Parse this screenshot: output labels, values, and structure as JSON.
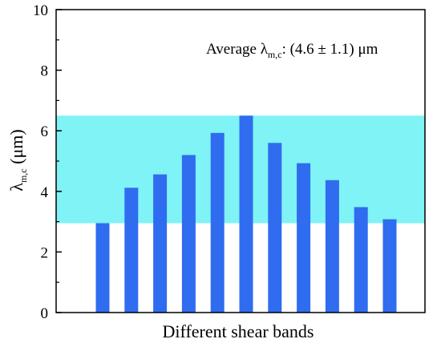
{
  "chart_data": {
    "type": "bar",
    "categories": [
      "",
      "",
      "",
      "",
      "",
      "",
      "",
      "",
      "",
      "",
      ""
    ],
    "values": [
      2.95,
      4.12,
      4.56,
      5.2,
      5.93,
      6.5,
      5.6,
      4.93,
      4.37,
      3.48,
      3.08
    ],
    "xlabel": "Different shear bands",
    "ylabel_main": "λ",
    "ylabel_sub": "m,c",
    "ylabel_unit": " (μm)",
    "ylim": [
      0,
      10
    ],
    "yticks": [
      0,
      2,
      4,
      6,
      8,
      10
    ],
    "grid": false,
    "band": {
      "from": 2.95,
      "to": 6.5,
      "color": "#7ff3f5"
    },
    "bar_color": "#2f6cf0",
    "annotation": {
      "prefix": "Average λ",
      "sub": "m,c",
      "suffix": ": (4.6 ± 1.1) μm"
    }
  }
}
